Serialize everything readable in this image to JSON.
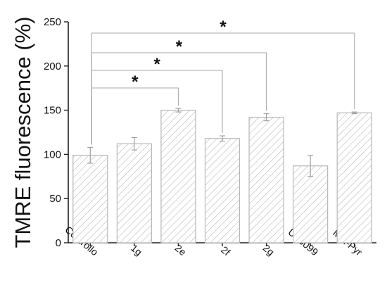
{
  "chart_data": {
    "type": "bar",
    "title": "",
    "xlabel": "",
    "ylabel": "TMRE fluorescence (%)",
    "ylim": [
      0,
      250
    ],
    "yticks": [
      0,
      50,
      100,
      150,
      200,
      250
    ],
    "categories": [
      "Controllo",
      "1g",
      "2e",
      "2f",
      "2g",
      "UK5099",
      "Met-Pyr"
    ],
    "values": [
      99,
      112,
      150,
      118,
      142,
      87,
      147
    ],
    "errors": [
      9,
      7,
      2,
      3,
      4,
      12,
      1
    ],
    "bar_fill": "hatched",
    "bar_color": "#b7b7b7",
    "grid": false,
    "legend": "none",
    "significance": [
      {
        "from": "Controllo",
        "to": "2e",
        "label": "*"
      },
      {
        "from": "Controllo",
        "to": "2f",
        "label": "*"
      },
      {
        "from": "Controllo",
        "to": "2g",
        "label": "*"
      },
      {
        "from": "Controllo",
        "to": "Met-Pyr",
        "label": "*"
      }
    ]
  }
}
